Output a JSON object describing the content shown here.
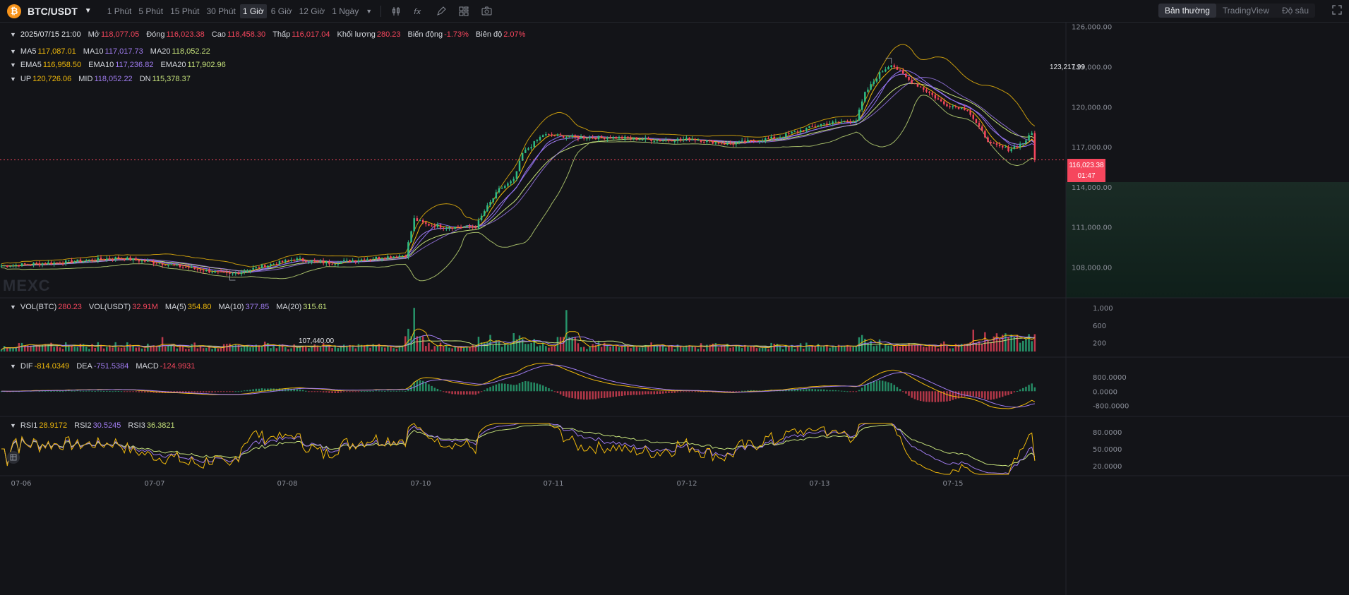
{
  "toolbar": {
    "symbol": "BTC/USDT",
    "coin_icon": "₿",
    "intervals": [
      "1 Phút",
      "5 Phút",
      "15 Phút",
      "30 Phút",
      "1 Giờ",
      "6 Giờ",
      "12 Giờ",
      "1 Ngày"
    ],
    "active_interval": "1 Giờ",
    "tools": [
      "candle-type-icon",
      "indicator-fx-icon",
      "draw-pen-icon",
      "layout-grid-icon",
      "camera-icon"
    ],
    "views": [
      "Bản thường",
      "TradingView",
      "Độ sâu"
    ],
    "active_view": "Bản thường"
  },
  "ohlc": {
    "datetime": "2025/07/15 21:00",
    "open_label": "Mở",
    "open": "118,077.05",
    "close_label": "Đóng",
    "close": "116,023.38",
    "high_label": "Cao",
    "high": "118,458.30",
    "low_label": "Thấp",
    "low": "116,017.04",
    "volume_label": "Khối lượng",
    "volume": "280.23",
    "change_label": "Biến động",
    "change": "-1.73%",
    "amplitude_label": "Biên độ",
    "amplitude": "2.07%"
  },
  "ma": {
    "ma5_label": "MA5",
    "ma5": "117,087.01",
    "ma10_label": "MA10",
    "ma10": "117,017.73",
    "ma20_label": "MA20",
    "ma20": "118,052.22"
  },
  "ema": {
    "ema5_label": "EMA5",
    "ema5": "116,958.50",
    "ema10_label": "EMA10",
    "ema10": "117,236.82",
    "ema20_label": "EMA20",
    "ema20": "117,902.96"
  },
  "boll": {
    "up_label": "UP",
    "up": "120,726.06",
    "mid_label": "MID",
    "mid": "118,052.22",
    "dn_label": "DN",
    "dn": "115,378.37"
  },
  "vol": {
    "btc_label": "VOL(BTC)",
    "btc": "280.23",
    "usdt_label": "VOL(USDT)",
    "usdt": "32.91M",
    "ma5_label": "MA(5)",
    "ma5": "354.80",
    "ma10_label": "MA(10)",
    "ma10": "377.85",
    "ma20_label": "MA(20)",
    "ma20": "315.61"
  },
  "macd": {
    "dif_label": "DIF",
    "dif": "-814.0349",
    "dea_label": "DEA",
    "dea": "-751.5384",
    "macd_label": "MACD",
    "macd": "-124.9931"
  },
  "rsi": {
    "rsi1_label": "RSI1",
    "rsi1": "28.9172",
    "rsi2_label": "RSI2",
    "rsi2": "30.5245",
    "rsi3_label": "RSI3",
    "rsi3": "36.3821"
  },
  "watermark": "MEXC",
  "current_price": {
    "price": "116,023.38",
    "countdown": "01:47"
  },
  "markers": {
    "high": "123,217.99",
    "low": "107,440.00"
  },
  "colors": {
    "up": "#2ebd85",
    "down": "#f6465d",
    "accent": "#f0b90b",
    "purple": "#a07cf0",
    "green": "#c5e17a"
  },
  "chart_data": {
    "type": "candlestick",
    "symbol": "BTC/USDT",
    "interval": "1 Giờ",
    "price_axis": {
      "ticks": [
        "126,000.00",
        "123,000.00",
        "120,000.00",
        "117,000.00",
        "114,000.00",
        "111,000.00",
        "108,000.00"
      ],
      "ylim": [
        105700,
        126300
      ]
    },
    "volume_axis": {
      "ticks": [
        "1,000",
        "600",
        "200"
      ],
      "ylim": [
        0,
        1100
      ]
    },
    "macd_axis": {
      "ticks": [
        "800.0000",
        "0.0000",
        "-800.0000"
      ],
      "ylim": [
        -1100,
        1600
      ]
    },
    "rsi_axis": {
      "ticks": [
        "80.0000",
        "50.0000",
        "20.0000"
      ],
      "ylim": [
        5,
        95
      ]
    },
    "x_labels": [
      "07-06",
      "07-07",
      "07-08",
      "07-10",
      "07-11",
      "07-12",
      "07-13",
      "07-15"
    ],
    "price_path": [
      [
        0,
        108100
      ],
      [
        20,
        108350
      ],
      [
        40,
        108700
      ],
      [
        52,
        108350
      ],
      [
        60,
        108100
      ],
      [
        68,
        107800
      ],
      [
        78,
        107440
      ],
      [
        88,
        108000
      ],
      [
        100,
        108600
      ],
      [
        112,
        108300
      ],
      [
        126,
        108650
      ],
      [
        138,
        108900
      ],
      [
        141,
        111600
      ],
      [
        145,
        111200
      ],
      [
        152,
        111000
      ],
      [
        162,
        111000
      ],
      [
        165,
        112200
      ],
      [
        170,
        113800
      ],
      [
        175,
        114500
      ],
      [
        178,
        116500
      ],
      [
        185,
        117900
      ],
      [
        192,
        117800
      ],
      [
        198,
        117700
      ],
      [
        210,
        117700
      ],
      [
        225,
        117500
      ],
      [
        236,
        117600
      ],
      [
        248,
        117200
      ],
      [
        265,
        117700
      ],
      [
        280,
        118700
      ],
      [
        292,
        119000
      ],
      [
        295,
        121000
      ],
      [
        300,
        122500
      ],
      [
        304,
        123217.99
      ],
      [
        310,
        122000
      ],
      [
        316,
        121200
      ],
      [
        322,
        120200
      ],
      [
        330,
        119800
      ],
      [
        334,
        118400
      ],
      [
        338,
        117200
      ],
      [
        344,
        116800
      ],
      [
        349,
        117300
      ],
      [
        352,
        118000
      ],
      [
        353,
        116023.38
      ]
    ],
    "volume_spikes": [
      [
        141,
        1000
      ],
      [
        193,
        950
      ],
      [
        55,
        330
      ],
      [
        175,
        420
      ],
      [
        167,
        380
      ],
      [
        332,
        500
      ]
    ],
    "rsi_latest": {
      "rsi1": 28.9172,
      "rsi2": 30.5245,
      "rsi3": 36.3821
    }
  }
}
